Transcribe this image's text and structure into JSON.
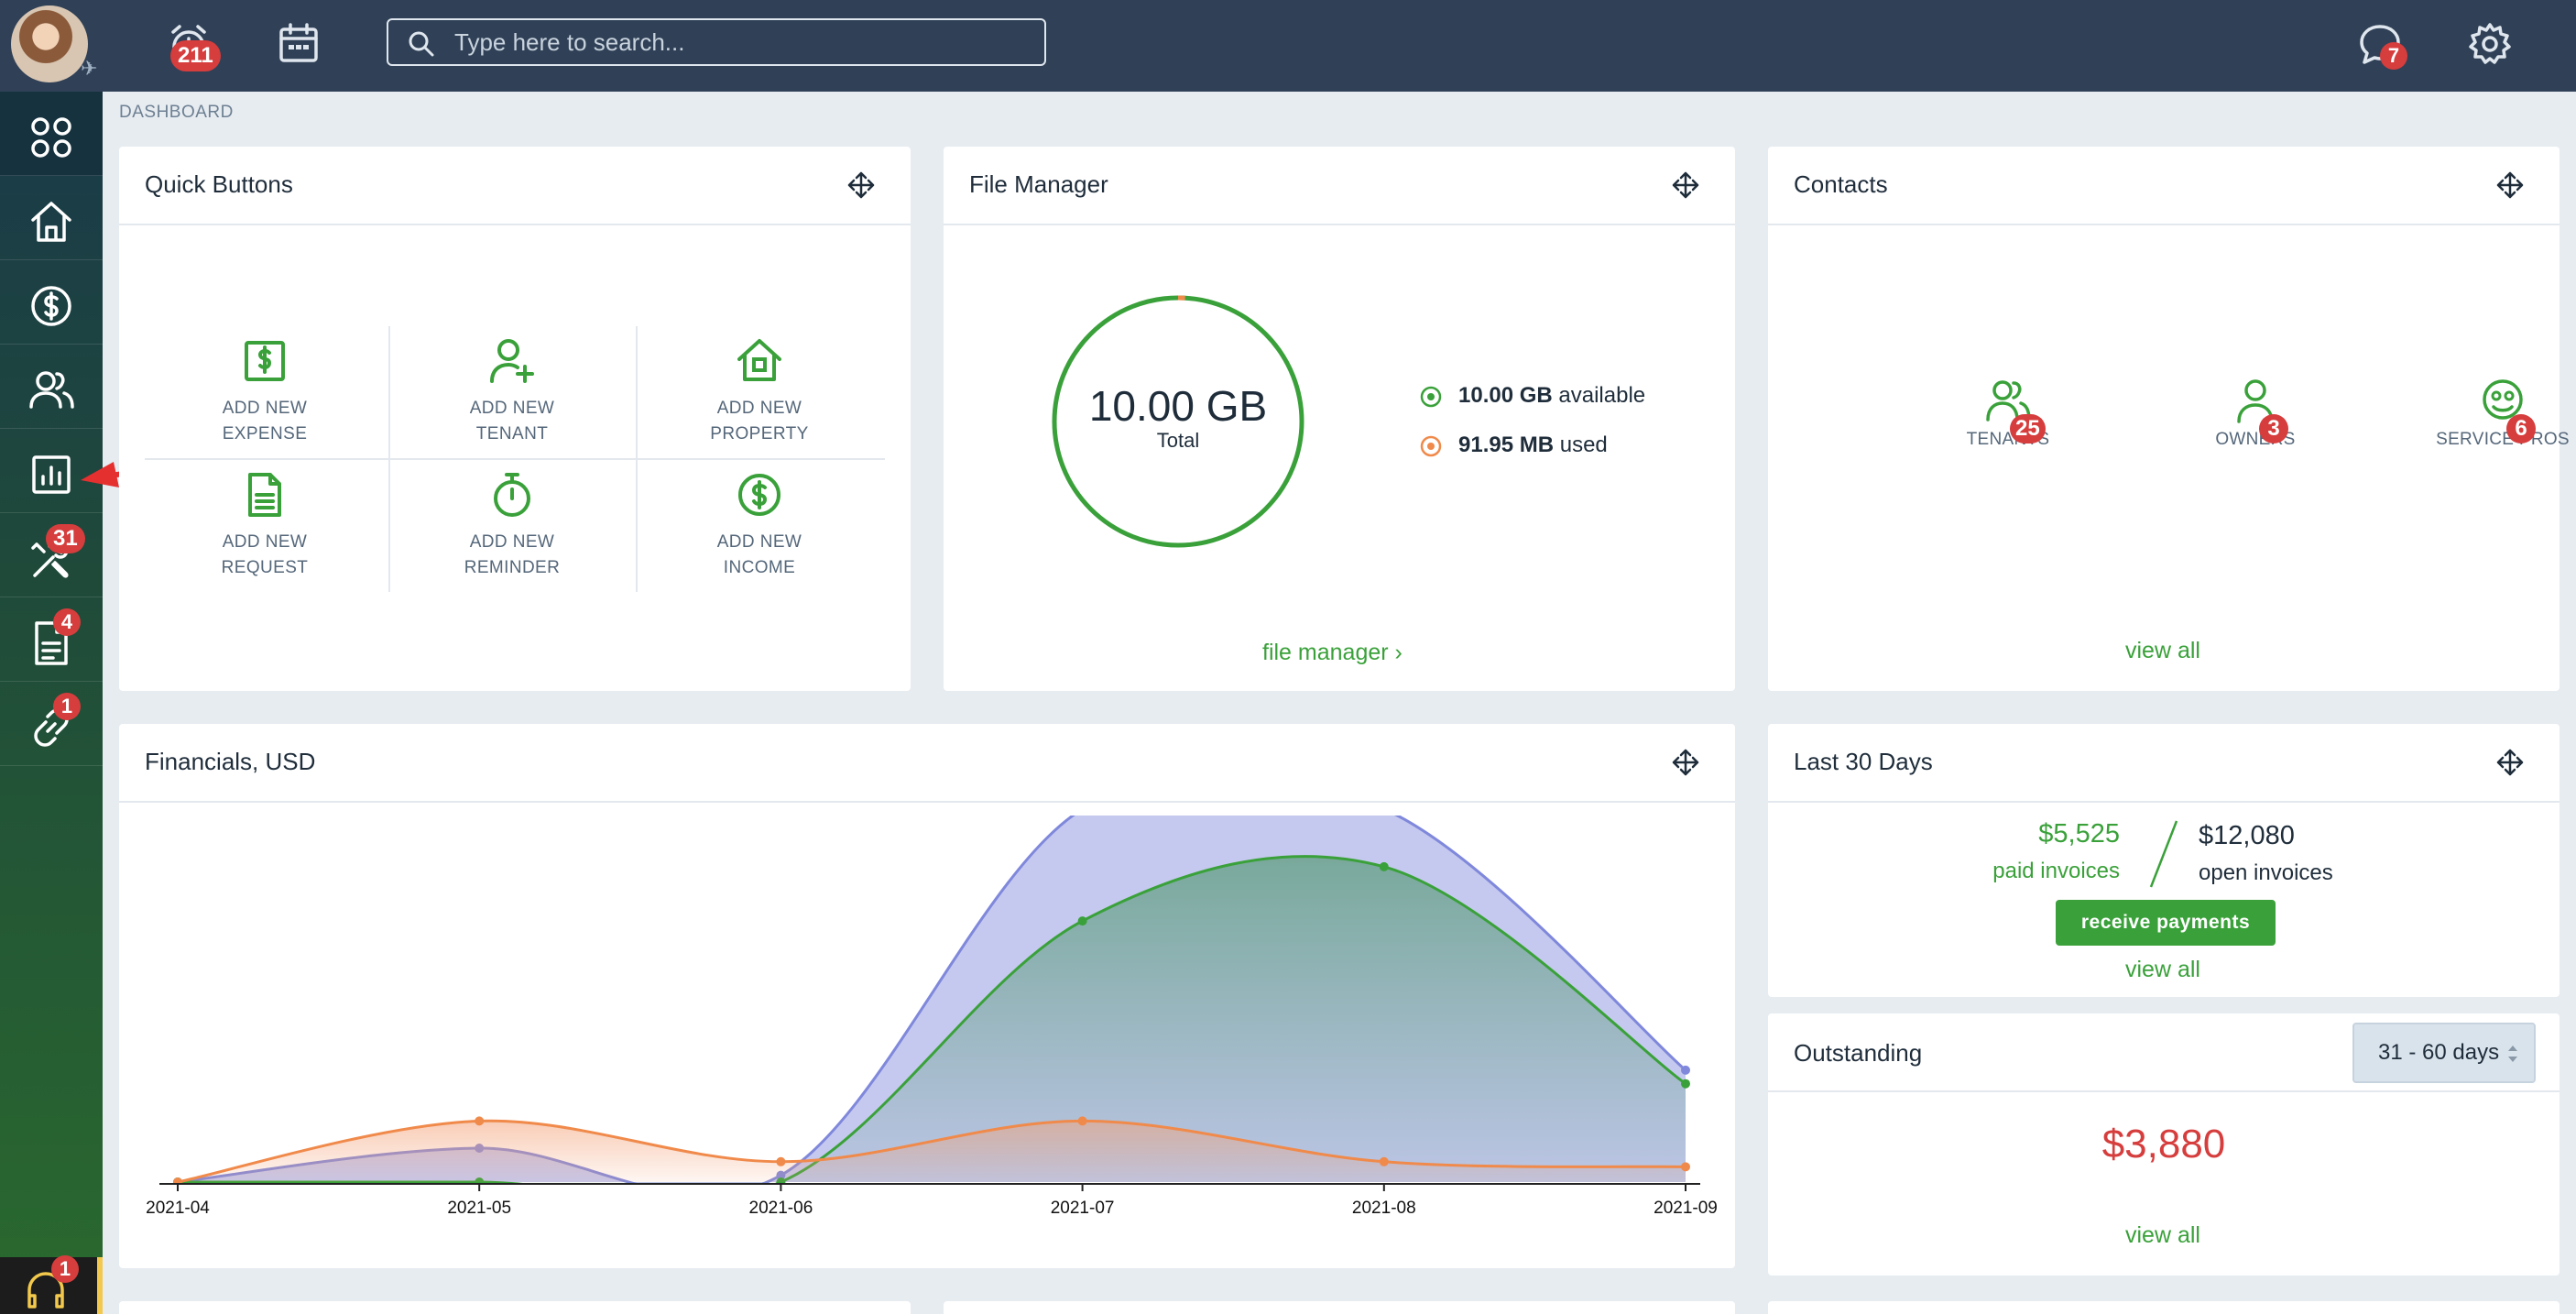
{
  "topbar": {
    "reminders_badge": "211",
    "messages_badge": "7",
    "search": {
      "placeholder": "Type here to search..."
    }
  },
  "sidebar": {
    "items": [
      {
        "name": "apps",
        "icon": "apps-grid-icon"
      },
      {
        "name": "home",
        "icon": "home-icon"
      },
      {
        "name": "accounting",
        "icon": "dollar-circle-icon"
      },
      {
        "name": "contacts",
        "icon": "users-icon"
      },
      {
        "name": "reports",
        "icon": "bar-chart-icon"
      },
      {
        "name": "maintenance",
        "icon": "tools-icon",
        "badge": "31"
      },
      {
        "name": "documents",
        "icon": "document-icon",
        "badge": "4"
      },
      {
        "name": "links",
        "icon": "link-icon",
        "badge": "1"
      }
    ],
    "support_badge": "1"
  },
  "breadcrumb": "DASHBOARD",
  "quick_buttons": {
    "title": "Quick Buttons",
    "items": [
      {
        "line1": "ADD NEW",
        "line2": "EXPENSE"
      },
      {
        "line1": "ADD NEW",
        "line2": "TENANT"
      },
      {
        "line1": "ADD NEW",
        "line2": "PROPERTY"
      },
      {
        "line1": "ADD NEW",
        "line2": "REQUEST"
      },
      {
        "line1": "ADD NEW",
        "line2": "REMINDER"
      },
      {
        "line1": "ADD NEW",
        "line2": "INCOME"
      }
    ]
  },
  "file_manager": {
    "title": "File Manager",
    "total_value": "10.00 GB",
    "total_label": "Total",
    "available_value": "10.00 GB",
    "available_label": "available",
    "used_value": "91.95 MB",
    "used_label": "used",
    "link": "file manager ›",
    "used_fraction": 0.009
  },
  "contacts": {
    "title": "Contacts",
    "items": [
      {
        "label": "TENANTS",
        "count": "25"
      },
      {
        "label": "OWNERS",
        "count": "3"
      },
      {
        "label": "SERVICE PROS",
        "count": "6"
      }
    ],
    "link": "view all"
  },
  "financials": {
    "title": "Financials, USD"
  },
  "chart_data": {
    "type": "area",
    "categories": [
      "2021-04",
      "2021-05",
      "2021-06",
      "2021-07",
      "2021-08",
      "2021-09"
    ],
    "series": [
      {
        "color": "#7f88db",
        "values": [
          0,
          0.1,
          0.02,
          1.1,
          1.1,
          0.33
        ]
      },
      {
        "color": "#3aa13a",
        "values": [
          0,
          0,
          0,
          0.77,
          0.93,
          0.29
        ]
      },
      {
        "color": "#f08a4b",
        "values": [
          0,
          0.18,
          0.06,
          0.18,
          0.06,
          0.045
        ]
      }
    ],
    "ylim": [
      0,
      1
    ],
    "grid": false,
    "legend": "none"
  },
  "last30": {
    "title": "Last 30 Days",
    "paid_value": "$5,525",
    "paid_label": "paid invoices",
    "open_value": "$12,080",
    "open_label": "open invoices",
    "button": "receive payments",
    "link": "view all"
  },
  "outstanding": {
    "title": "Outstanding",
    "range": "31 - 60 days",
    "amount": "$3,880",
    "link": "view all"
  },
  "colors": {
    "accent_green": "#3aa13a",
    "danger": "#d63d3d",
    "topbar": "#304157"
  }
}
